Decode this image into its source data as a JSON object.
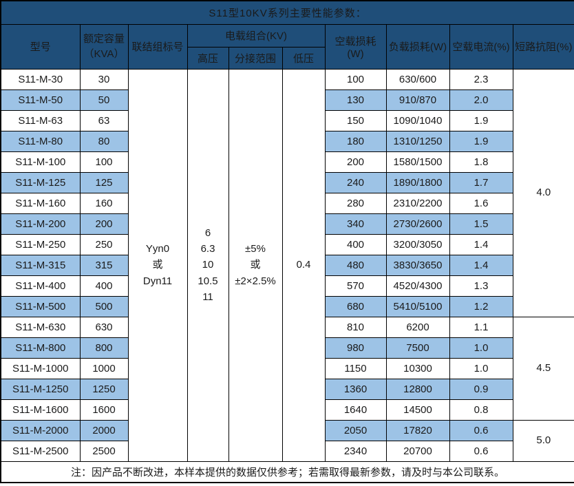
{
  "title": "S11型10KV系列主要性能参数：",
  "note": "注：因产品不断改进，本样本提供的数据仅供参考；若需取得最新参数，请及时与本公司联系。",
  "colors": {
    "header_bg": "#1F4E79",
    "row_alt": "#9DC3E6",
    "border": "#000000",
    "text": "#1A1A1A",
    "header_text": "#FFFFFF"
  },
  "table": {
    "headers": {
      "model": "型号",
      "capacity": "额定容量\n（KVA）",
      "connection": "联结组标号",
      "load_combo": "电载组合(KV)",
      "hv": "高压",
      "tap_range": "分接范围",
      "lv": "低压",
      "no_load_loss": "空载损耗(W)",
      "load_loss": "负载损耗(W)",
      "no_load_current": "空载电流(%)",
      "impedance": "短路抗阻(%)"
    },
    "merged": {
      "connection": "Yyn0\n或\nDyn11",
      "hv": "6\n6.3\n10\n10.5\n11",
      "tap_range": "±5%\n或\n±2×2.5%",
      "lv": "0.4"
    },
    "impedance_groups": [
      {
        "value": "4.0",
        "span": 12
      },
      {
        "value": "4.5",
        "span": 5
      },
      {
        "value": "5.0",
        "span": 2
      }
    ],
    "rows": [
      {
        "model": "S11-M-30",
        "capacity": "30",
        "no_load_loss": "100",
        "load_loss": "630/600",
        "no_load_current": "2.3"
      },
      {
        "model": "S11-M-50",
        "capacity": "50",
        "no_load_loss": "130",
        "load_loss": "910/870",
        "no_load_current": "2.0"
      },
      {
        "model": "S11-M-63",
        "capacity": "63",
        "no_load_loss": "150",
        "load_loss": "1090/1040",
        "no_load_current": "1.9"
      },
      {
        "model": "S11-M-80",
        "capacity": "80",
        "no_load_loss": "180",
        "load_loss": "1310/1250",
        "no_load_current": "1.9"
      },
      {
        "model": "S11-M-100",
        "capacity": "100",
        "no_load_loss": "200",
        "load_loss": "1580/1500",
        "no_load_current": "1.8"
      },
      {
        "model": "S11-M-125",
        "capacity": "125",
        "no_load_loss": "240",
        "load_loss": "1890/1800",
        "no_load_current": "1.7"
      },
      {
        "model": "S11-M-160",
        "capacity": "160",
        "no_load_loss": "280",
        "load_loss": "2310/2200",
        "no_load_current": "1.6"
      },
      {
        "model": "S11-M-200",
        "capacity": "200",
        "no_load_loss": "340",
        "load_loss": "2730/2600",
        "no_load_current": "1.5"
      },
      {
        "model": "S11-M-250",
        "capacity": "250",
        "no_load_loss": "400",
        "load_loss": "3200/3050",
        "no_load_current": "1.4"
      },
      {
        "model": "S11-M-315",
        "capacity": "315",
        "no_load_loss": "480",
        "load_loss": "3830/3650",
        "no_load_current": "1.4"
      },
      {
        "model": "S11-M-400",
        "capacity": "400",
        "no_load_loss": "570",
        "load_loss": "4520/4300",
        "no_load_current": "1.3"
      },
      {
        "model": "S11-M-500",
        "capacity": "500",
        "no_load_loss": "680",
        "load_loss": "5410/5100",
        "no_load_current": "1.2"
      },
      {
        "model": "S11-M-630",
        "capacity": "630",
        "no_load_loss": "810",
        "load_loss": "6200",
        "no_load_current": "1.1"
      },
      {
        "model": "S11-M-800",
        "capacity": "800",
        "no_load_loss": "980",
        "load_loss": "7500",
        "no_load_current": "1.0"
      },
      {
        "model": "S11-M-1000",
        "capacity": "1000",
        "no_load_loss": "1150",
        "load_loss": "10300",
        "no_load_current": "1.0"
      },
      {
        "model": "S11-M-1250",
        "capacity": "1250",
        "no_load_loss": "1360",
        "load_loss": "12800",
        "no_load_current": "0.9"
      },
      {
        "model": "S11-M-1600",
        "capacity": "1600",
        "no_load_loss": "1640",
        "load_loss": "14500",
        "no_load_current": "0.8"
      },
      {
        "model": "S11-M-2000",
        "capacity": "2000",
        "no_load_loss": "2050",
        "load_loss": "17820",
        "no_load_current": "0.6"
      },
      {
        "model": "S11-M-2500",
        "capacity": "2500",
        "no_load_loss": "2340",
        "load_loss": "20700",
        "no_load_current": "0.6"
      }
    ]
  }
}
